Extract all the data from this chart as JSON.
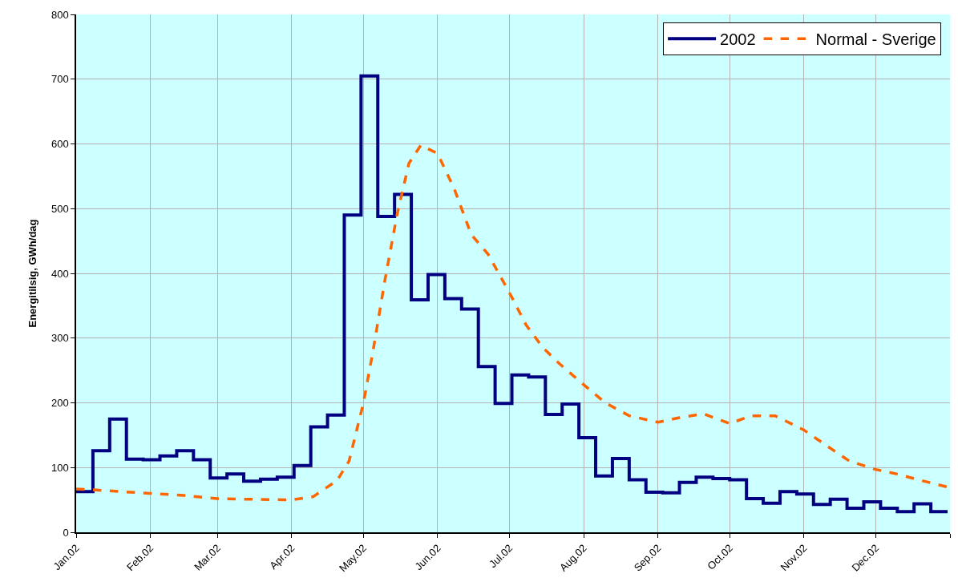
{
  "chart_data": {
    "type": "line",
    "ylabel": "Energitilsig, GWh/dag",
    "xlim": [
      "2002-01-01",
      "2003-01-01"
    ],
    "ylim": [
      0,
      800
    ],
    "yticks": [
      0,
      100,
      200,
      300,
      400,
      500,
      600,
      700,
      800
    ],
    "xticks": [
      {
        "value": "2002-01-01",
        "label": "Jan.02"
      },
      {
        "value": "2002-02-01",
        "label": "Feb.02"
      },
      {
        "value": "2002-03-01",
        "label": "Mar.02"
      },
      {
        "value": "2002-04-01",
        "label": "Apr.02"
      },
      {
        "value": "2002-05-01",
        "label": "May.02"
      },
      {
        "value": "2002-06-01",
        "label": "Jun.02"
      },
      {
        "value": "2002-07-01",
        "label": "Jul.02"
      },
      {
        "value": "2002-08-01",
        "label": "Aug.02"
      },
      {
        "value": "2002-09-01",
        "label": "Sep.02"
      },
      {
        "value": "2002-10-01",
        "label": "Oct.02"
      },
      {
        "value": "2002-11-01",
        "label": "Nov.02"
      },
      {
        "value": "2002-12-01",
        "label": "Dec.02"
      },
      {
        "value": "2003-01-01",
        "label": null
      }
    ],
    "grid": true,
    "legend": "top right",
    "marker": "none",
    "series": [
      {
        "name": "2002",
        "type": "step",
        "color": "#000080",
        "line_style": "solid",
        "x": [
          "2002-01-01",
          "2002-01-08",
          "2002-01-15",
          "2002-01-22",
          "2002-01-29",
          "2002-02-05",
          "2002-02-12",
          "2002-02-19",
          "2002-02-26",
          "2002-03-05",
          "2002-03-12",
          "2002-03-19",
          "2002-03-26",
          "2002-04-02",
          "2002-04-09",
          "2002-04-16",
          "2002-04-23",
          "2002-04-30",
          "2002-05-07",
          "2002-05-14",
          "2002-05-21",
          "2002-05-28",
          "2002-06-04",
          "2002-06-11",
          "2002-06-18",
          "2002-06-25",
          "2002-07-02",
          "2002-07-09",
          "2002-07-16",
          "2002-07-23",
          "2002-07-30",
          "2002-08-06",
          "2002-08-13",
          "2002-08-20",
          "2002-08-27",
          "2002-09-03",
          "2002-09-10",
          "2002-09-17",
          "2002-09-24",
          "2002-10-01",
          "2002-10-08",
          "2002-10-15",
          "2002-10-22",
          "2002-10-29",
          "2002-11-05",
          "2002-11-12",
          "2002-11-19",
          "2002-11-26",
          "2002-12-03",
          "2002-12-10",
          "2002-12-17",
          "2002-12-24",
          "2002-12-31"
        ],
        "values": [
          63,
          126,
          175,
          113,
          112,
          118,
          126,
          112,
          84,
          90,
          79,
          82,
          85,
          103,
          163,
          181,
          490,
          705,
          488,
          522,
          359,
          398,
          361,
          345,
          256,
          199,
          243,
          240,
          182,
          198,
          146,
          87,
          114,
          81,
          62,
          61,
          77,
          85,
          83,
          81,
          52,
          45,
          63,
          59,
          43,
          51,
          37,
          47,
          37,
          32,
          44,
          32,
          32
        ]
      },
      {
        "name": "Normal - Sverige",
        "color": "#ff6600",
        "line_style": "dashed",
        "x": [
          "2002-01-01",
          "2002-01-15",
          "2002-02-01",
          "2002-02-15",
          "2002-03-01",
          "2002-03-15",
          "2002-04-01",
          "2002-04-10",
          "2002-04-20",
          "2002-04-25",
          "2002-05-01",
          "2002-05-05",
          "2002-05-10",
          "2002-05-15",
          "2002-05-20",
          "2002-05-25",
          "2002-06-01",
          "2002-06-08",
          "2002-06-15",
          "2002-06-22",
          "2002-07-01",
          "2002-07-08",
          "2002-07-15",
          "2002-07-22",
          "2002-08-01",
          "2002-08-10",
          "2002-08-20",
          "2002-09-01",
          "2002-09-10",
          "2002-09-20",
          "2002-10-01",
          "2002-10-10",
          "2002-10-20",
          "2002-11-01",
          "2002-11-10",
          "2002-11-20",
          "2002-12-01",
          "2002-12-10",
          "2002-12-20",
          "2002-12-31"
        ],
        "values": [
          67,
          64,
          60,
          57,
          52,
          51,
          50,
          55,
          80,
          110,
          200,
          280,
          390,
          490,
          570,
          598,
          585,
          530,
          460,
          430,
          370,
          320,
          285,
          260,
          228,
          200,
          180,
          170,
          177,
          183,
          168,
          180,
          180,
          158,
          135,
          110,
          97,
          90,
          80,
          70
        ]
      }
    ]
  }
}
